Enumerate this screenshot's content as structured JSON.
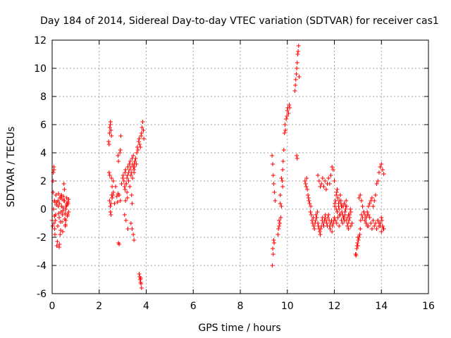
{
  "chart_data": {
    "type": "scatter",
    "title": "Day 184 of 2014, Sidereal Day-to-day VTEC variation (SDTVAR) for receiver cas1",
    "xlabel": "GPS time / hours",
    "ylabel": "SDTVAR / TECUs",
    "xlim": [
      0,
      16
    ],
    "ylim": [
      -6,
      12
    ],
    "xticks": [
      0,
      2,
      4,
      6,
      8,
      10,
      12,
      14,
      16
    ],
    "xtick_labels": [
      "0",
      "2",
      "4",
      "6",
      "8",
      "10",
      "12",
      "14",
      "16"
    ],
    "yticks": [
      -6,
      -4,
      -2,
      0,
      2,
      4,
      6,
      8,
      10,
      12
    ],
    "ytick_labels": [
      "-6",
      "-4",
      "-2",
      "0",
      "2",
      "4",
      "6",
      "8",
      "10",
      "12"
    ],
    "grid": true,
    "marker": "+",
    "color": "#ff0000",
    "series": [
      {
        "name": "SDTVAR",
        "x": [
          0.0,
          0.02,
          0.04,
          0.05,
          0.07,
          0.08,
          0.1,
          0.11,
          0.12,
          0.14,
          0.16,
          0.18,
          0.2,
          0.22,
          0.24,
          0.25,
          0.27,
          0.28,
          0.3,
          0.31,
          0.32,
          0.33,
          0.35,
          0.36,
          0.38,
          0.4,
          0.42,
          0.44,
          0.45,
          0.47,
          0.48,
          0.5,
          0.52,
          0.53,
          0.55,
          0.57,
          0.58,
          0.6,
          0.62,
          0.63,
          0.65,
          0.67,
          0.68,
          0.7,
          0.04,
          0.06,
          0.08,
          0.1,
          0.26,
          0.3,
          0.34,
          0.38,
          0.42,
          0.46,
          0.5,
          0.54,
          0.58,
          0.62,
          0.66,
          0.7,
          0.12,
          0.14,
          0.2,
          0.4,
          0.56,
          2.4,
          2.42,
          2.44,
          2.45,
          2.47,
          2.48,
          2.5,
          2.52,
          2.53,
          2.55,
          2.42,
          2.45,
          2.48,
          2.5,
          2.52,
          2.55,
          2.58,
          2.6,
          2.44,
          2.47,
          2.5,
          2.55,
          2.6,
          2.65,
          2.7,
          2.75,
          2.78,
          2.8,
          2.82,
          2.85,
          2.88,
          2.9,
          2.92,
          2.8,
          2.82,
          2.85,
          2.9,
          2.95,
          3.0,
          3.02,
          3.05,
          3.08,
          3.1,
          3.12,
          3.15,
          3.18,
          3.2,
          3.22,
          3.25,
          3.28,
          3.3,
          3.32,
          3.35,
          3.38,
          3.4,
          3.42,
          3.45,
          3.48,
          3.5,
          3.52,
          3.55,
          3.58,
          3.6,
          3.62,
          3.65,
          3.68,
          3.7,
          3.72,
          3.75,
          3.78,
          3.8,
          3.82,
          3.85,
          3.88,
          3.9,
          3.1,
          3.12,
          3.15,
          3.18,
          3.2,
          3.25,
          3.3,
          3.35,
          3.38,
          3.4,
          3.42,
          3.45,
          3.48,
          3.5,
          3.35,
          3.4,
          3.45,
          3.48,
          3.7,
          3.72,
          3.74,
          3.76,
          3.78,
          3.8,
          3.75,
          3.77,
          3.08,
          3.14,
          3.22,
          9.35,
          9.38,
          9.4,
          9.42,
          9.45,
          9.48,
          9.36,
          9.4,
          9.44,
          9.38,
          9.42,
          9.6,
          9.62,
          9.65,
          9.68,
          9.7,
          9.72,
          9.75,
          9.78,
          9.8,
          9.82,
          9.85,
          9.88,
          9.9,
          9.92,
          9.95,
          9.98,
          10.0,
          10.02,
          10.05,
          10.08,
          10.1,
          9.65,
          9.7,
          9.75,
          9.8,
          10.32,
          10.34,
          10.36,
          10.38,
          10.4,
          10.42,
          10.44,
          10.46,
          10.48,
          10.5,
          10.4,
          10.42,
          10.75,
          10.78,
          10.8,
          10.82,
          10.85,
          10.88,
          10.9,
          10.92,
          10.95,
          10.98,
          11.0,
          11.02,
          11.05,
          11.08,
          11.1,
          11.12,
          11.15,
          11.18,
          11.2,
          11.22,
          11.25,
          11.28,
          11.3,
          11.32,
          11.35,
          11.38,
          11.4,
          11.42,
          11.45,
          11.48,
          11.5,
          11.52,
          11.55,
          11.58,
          11.6,
          11.62,
          11.65,
          11.68,
          11.7,
          11.72,
          11.75,
          11.78,
          11.8,
          11.82,
          11.85,
          11.88,
          11.9,
          11.92,
          11.95,
          11.98,
          12.0,
          12.02,
          12.05,
          12.08,
          12.1,
          12.12,
          12.15,
          12.18,
          12.2,
          12.22,
          12.25,
          12.28,
          12.3,
          12.32,
          12.35,
          12.38,
          12.4,
          12.42,
          12.45,
          12.48,
          12.5,
          12.52,
          12.55,
          12.58,
          12.6,
          12.62,
          12.65,
          12.68,
          12.7,
          12.05,
          12.1,
          12.15,
          12.2,
          12.25,
          12.3,
          12.35,
          12.4,
          12.45,
          12.5,
          12.55,
          12.6,
          12.65,
          12.7,
          12.75,
          12.02,
          12.08,
          12.12,
          12.18,
          12.22,
          12.28,
          12.32,
          12.38,
          12.42,
          12.48,
          11.3,
          11.35,
          11.4,
          11.45,
          11.5,
          11.55,
          11.6,
          11.65,
          11.7,
          11.75,
          11.8,
          11.85,
          11.9,
          11.95,
          12.0,
          12.9,
          12.92,
          12.95,
          12.98,
          13.0,
          13.02,
          13.05,
          13.08,
          13.1,
          13.12,
          13.15,
          12.92,
          12.96,
          13.0,
          13.05,
          13.1,
          13.15,
          13.2,
          13.25,
          13.3,
          13.35,
          13.4,
          13.45,
          13.5,
          13.55,
          13.6,
          13.65,
          13.7,
          13.75,
          13.8,
          13.85,
          13.9,
          13.95,
          14.0,
          14.05,
          14.1,
          13.2,
          13.25,
          13.3,
          13.35,
          13.4,
          13.45,
          13.5,
          13.55,
          13.6,
          13.65,
          13.7,
          13.75,
          13.8,
          13.85,
          13.9,
          13.95,
          14.0,
          14.05,
          14.1,
          13.85,
          13.9,
          13.95,
          14.0,
          14.02,
          14.05,
          14.08,
          13.3,
          13.35,
          13.4,
          13.45
        ],
        "y": [
          -0.8,
          -1.2,
          2.0,
          2.6,
          3.0,
          2.8,
          -0.5,
          -1.4,
          0.5,
          -0.8,
          1.0,
          0.3,
          -2.6,
          -2.3,
          -1.2,
          0.6,
          1.1,
          -0.3,
          -2.7,
          -2.5,
          0.4,
          0.8,
          -0.9,
          -1.5,
          -0.2,
          0.2,
          0.7,
          -0.4,
          -1.6,
          0.1,
          0.9,
          1.8,
          1.4,
          0.6,
          -0.3,
          -1.1,
          -0.8,
          0.2,
          0.8,
          0.3,
          -0.5,
          0.5,
          0.4,
          -0.2,
          1.2,
          0.0,
          -1.0,
          0.6,
          0.2,
          -0.6,
          -1.8,
          0.9,
          -0.9,
          -0.1,
          0.6,
          -0.7,
          0.0,
          0.4,
          -0.4,
          0.7,
          -1.8,
          -0.4,
          0.5,
          1.0,
          -1.2,
          4.8,
          4.6,
          5.4,
          5.8,
          6.0,
          6.2,
          5.6,
          5.2,
          1.0,
          0.8,
          2.6,
          2.4,
          -0.2,
          -0.4,
          2.2,
          1.6,
          1.0,
          2.0,
          0.6,
          0.2,
          0.4,
          0.8,
          1.2,
          0.4,
          1.6,
          0.9,
          0.5,
          1.1,
          -2.4,
          -2.5,
          4.0,
          4.2,
          5.2,
          3.8,
          3.4,
          1.0,
          0.6,
          1.8,
          2.2,
          2.4,
          2.0,
          1.6,
          2.6,
          2.8,
          1.8,
          2.2,
          2.4,
          3.0,
          2.6,
          3.2,
          2.8,
          3.4,
          3.0,
          2.6,
          3.6,
          3.2,
          3.8,
          2.8,
          3.0,
          3.4,
          3.6,
          3.2,
          4.0,
          4.4,
          4.2,
          4.8,
          5.0,
          4.6,
          4.4,
          5.2,
          5.4,
          5.8,
          6.2,
          5.6,
          5.0,
          1.4,
          0.6,
          1.8,
          1.2,
          0.8,
          2.0,
          1.6,
          2.4,
          1.0,
          0.4,
          2.2,
          3.0,
          2.6,
          3.2,
          -1.0,
          -1.4,
          -1.8,
          -2.2,
          -4.6,
          -4.8,
          -5.0,
          -5.2,
          -5.3,
          -5.6,
          -5.0,
          -4.9,
          -0.4,
          -0.8,
          -1.4,
          3.8,
          3.2,
          2.4,
          1.8,
          1.2,
          0.6,
          -4.0,
          -3.2,
          -2.4,
          -2.8,
          -2.2,
          -1.8,
          -1.4,
          -1.2,
          -1.0,
          0.4,
          -0.6,
          0.2,
          2.0,
          2.8,
          3.4,
          4.2,
          5.4,
          6.0,
          5.6,
          6.4,
          6.6,
          7.0,
          7.2,
          6.8,
          7.4,
          7.2,
          -0.8,
          1.0,
          2.2,
          1.6,
          8.4,
          8.8,
          9.2,
          9.6,
          10.0,
          10.4,
          11.0,
          11.2,
          11.6,
          9.4,
          3.8,
          3.6,
          2.0,
          1.8,
          1.6,
          2.2,
          1.4,
          1.0,
          0.8,
          0.6,
          0.4,
          -0.2,
          0.2,
          -0.4,
          -0.8,
          -1.0,
          -0.6,
          -1.2,
          -1.4,
          -1.0,
          -0.8,
          -0.4,
          -0.6,
          -0.2,
          -1.0,
          -1.2,
          -1.4,
          -1.6,
          -1.8,
          -1.4,
          -1.2,
          -0.8,
          -0.6,
          -1.0,
          -1.2,
          -0.8,
          -0.6,
          -0.4,
          -0.8,
          -1.0,
          -1.2,
          -0.6,
          -0.4,
          -0.8,
          -1.2,
          -1.4,
          -1.0,
          -0.8,
          -1.6,
          -1.2,
          -1.0,
          -0.8,
          -0.6,
          0.2,
          0.6,
          1.0,
          1.2,
          1.4,
          0.8,
          0.4,
          0.0,
          0.6,
          1.0,
          0.4,
          0.2,
          -0.2,
          -0.4,
          0.2,
          -0.6,
          -0.8,
          -0.4,
          0.2,
          0.6,
          0.2,
          -0.6,
          -1.0,
          -1.4,
          -0.8,
          -0.4,
          0.0,
          -1.2,
          -0.8,
          -1.0,
          -0.6,
          -1.2,
          -0.4,
          -0.8,
          -1.0,
          -0.6,
          -0.2,
          -0.8,
          -1.2,
          -0.4,
          -0.6,
          -0.2,
          -1.0,
          0.4,
          0.0,
          -0.2,
          0.2,
          -0.4,
          0.6,
          0.2,
          -0.6,
          0.4,
          0.0,
          2.4,
          2.0,
          1.6,
          1.8,
          2.2,
          1.6,
          2.0,
          1.4,
          1.8,
          2.2,
          1.8,
          2.4,
          3.0,
          2.8,
          2.0,
          -3.2,
          -3.3,
          -2.8,
          -2.4,
          -2.6,
          -2.2,
          -2.0,
          -1.8,
          -1.4,
          -0.8,
          -0.4,
          -3.2,
          -2.6,
          -2.0,
          0.8,
          1.0,
          0.6,
          0.2,
          -0.2,
          -0.4,
          -0.6,
          -0.2,
          0.2,
          0.4,
          0.6,
          0.8,
          0.2,
          0.6,
          1.0,
          1.8,
          2.0,
          2.6,
          3.0,
          3.2,
          2.8,
          2.5,
          -0.6,
          -0.2,
          -0.8,
          -1.0,
          -0.4,
          -1.2,
          -0.6,
          -1.0,
          -1.4,
          -0.8,
          -1.2,
          -1.0,
          -1.4,
          -0.8,
          -1.2,
          -1.0,
          -1.6,
          -1.2,
          -1.4,
          -0.8,
          -1.0,
          -1.2,
          -0.6,
          -0.8,
          -1.2,
          -1.4,
          -0.8,
          -1.0,
          -1.2,
          -0.4
        ]
      }
    ]
  }
}
